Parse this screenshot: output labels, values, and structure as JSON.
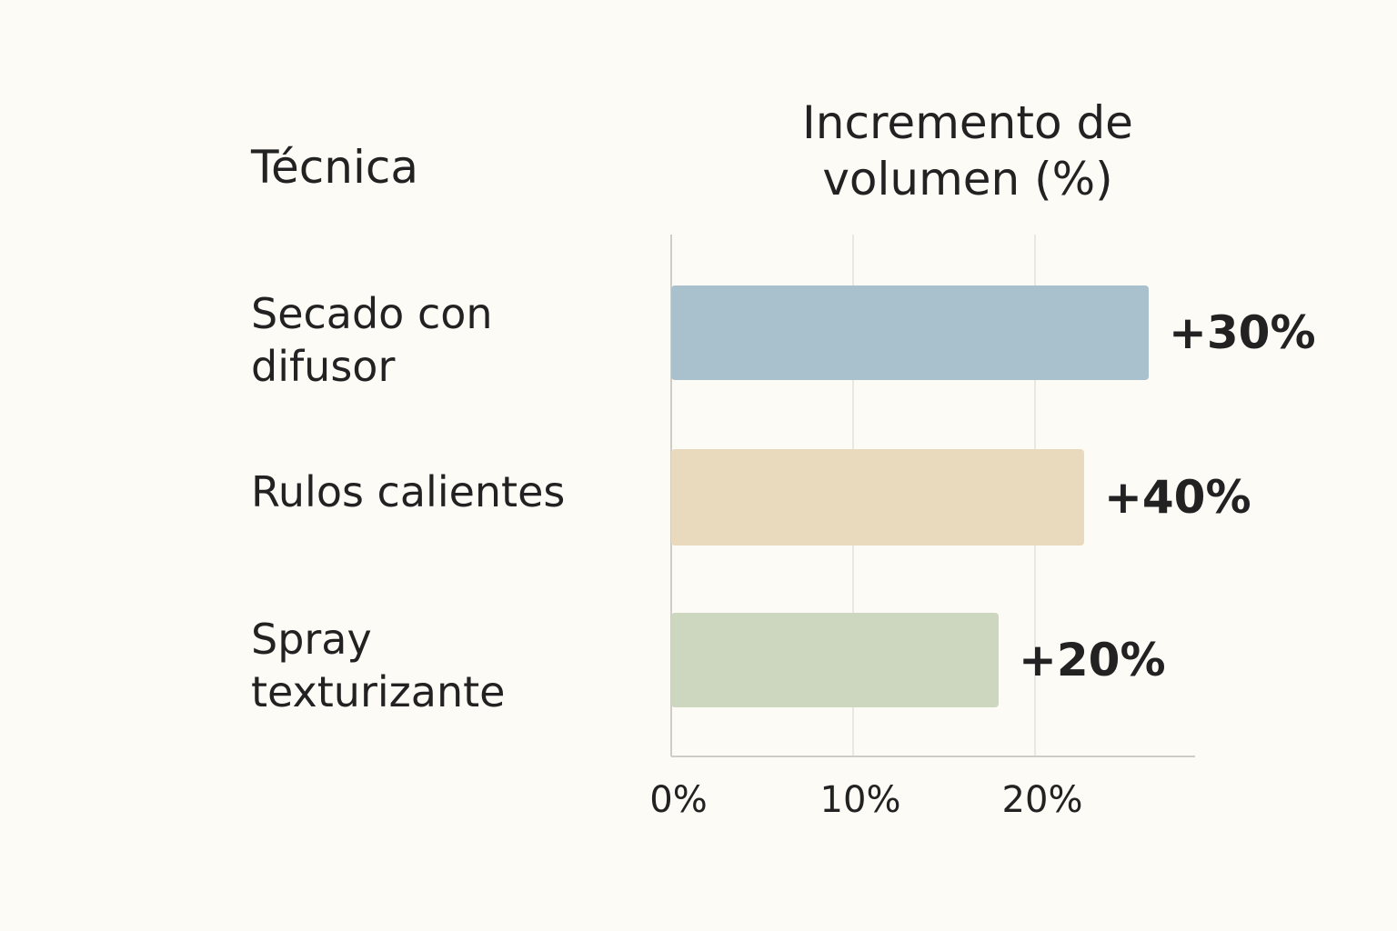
{
  "chart_data": {
    "type": "bar",
    "orientation": "horizontal",
    "category_header": "Técnica",
    "value_header": "Incremento de volumen (%)",
    "categories": [
      "Secado con difusor",
      "Rulos calientes",
      "Spray texturizante"
    ],
    "values": [
      30,
      40,
      20
    ],
    "value_labels": [
      "+30%",
      "+40%",
      "+20%"
    ],
    "bar_colors": [
      "#a9c0cd",
      "#e9dabd",
      "#cdd6be"
    ],
    "xticks": [
      0,
      10,
      20
    ],
    "xtick_labels": [
      "0%",
      "10%",
      "20%"
    ],
    "grid": true,
    "legend": "none"
  }
}
